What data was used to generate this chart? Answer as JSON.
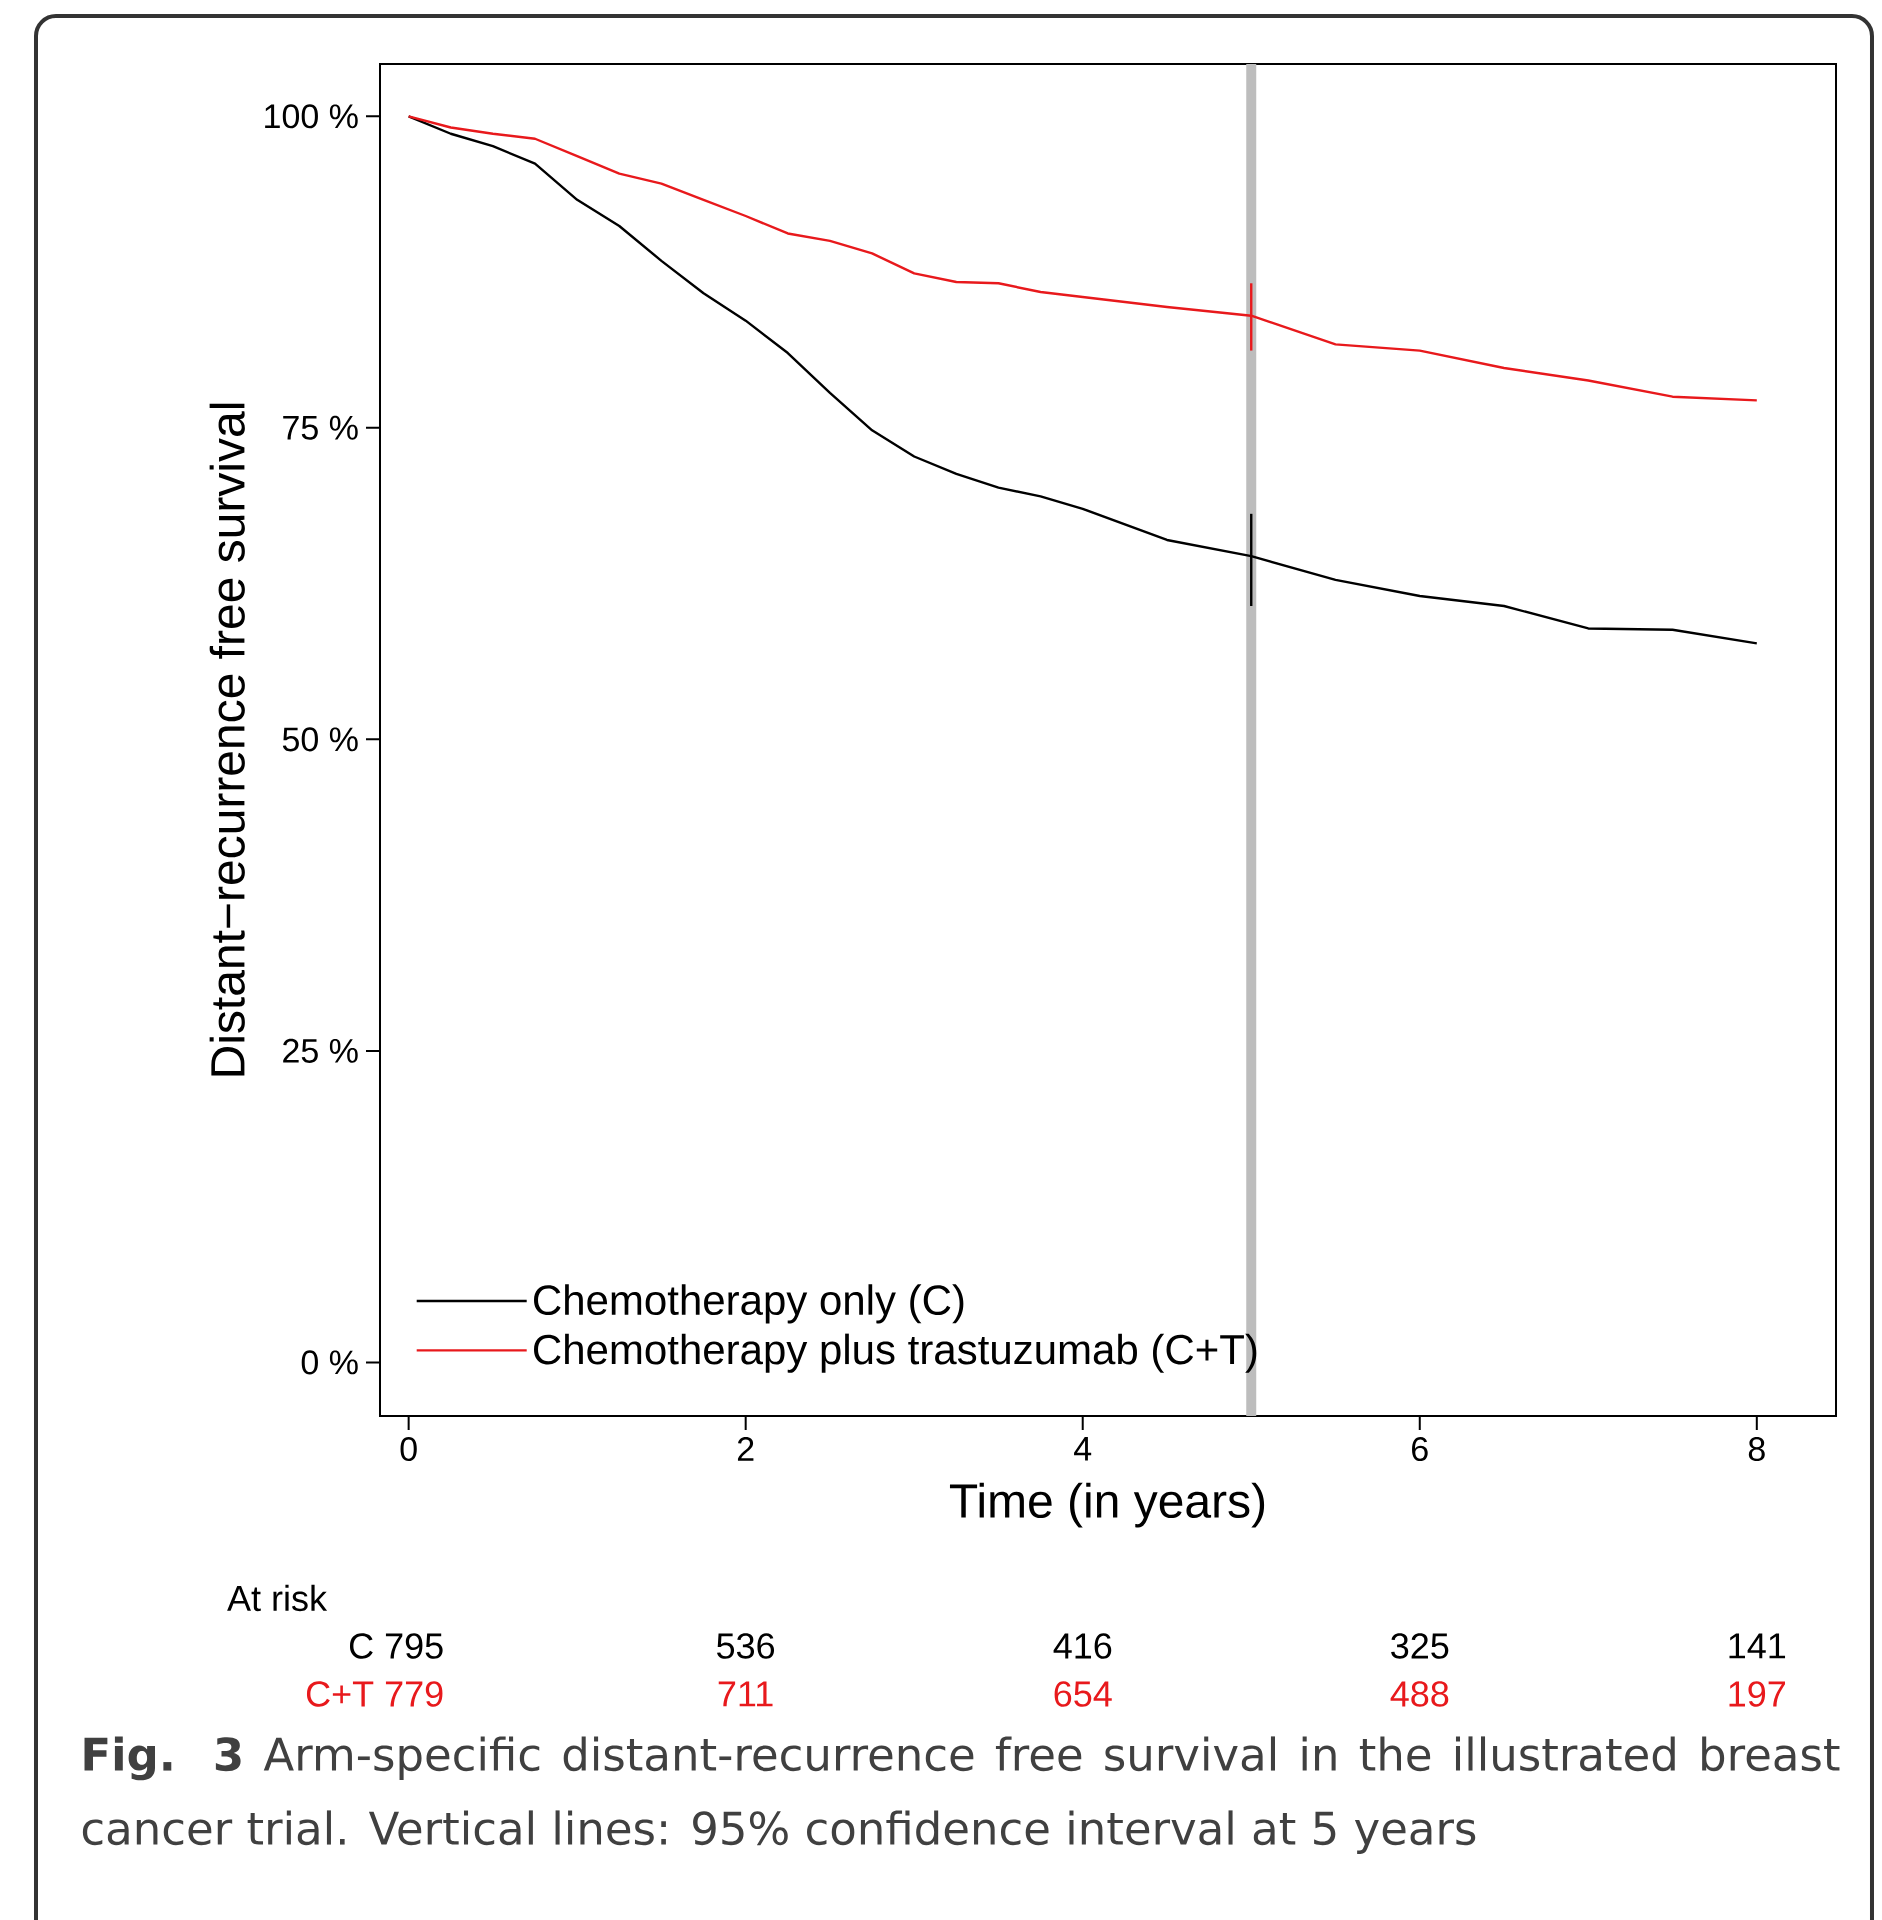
{
  "chart_data": {
    "type": "line",
    "xlabel": "Time (in years)",
    "ylabel": "Distant−recurrence free survival",
    "x": [
      0,
      0.25,
      0.5,
      0.75,
      1,
      1.25,
      1.5,
      1.75,
      2,
      2.25,
      2.5,
      2.75,
      3,
      3.25,
      3.5,
      3.75,
      4,
      4.5,
      5,
      5.5,
      6,
      6.5,
      7,
      7.5,
      8
    ],
    "series": [
      {
        "name": "Chemotherapy only (C)",
        "color": "#000000",
        "values": [
          100,
          98.6,
          97.6,
          96.2,
          93.3,
          91.2,
          88.4,
          85.8,
          83.6,
          81,
          77.8,
          74.8,
          72.7,
          71.3,
          70.2,
          69.5,
          68.5,
          66,
          64.7,
          62.8,
          61.5,
          60.7,
          58.9,
          58.8,
          57.7
        ],
        "errors": [
          null,
          null,
          null,
          null,
          null,
          null,
          null,
          null,
          null,
          null,
          null,
          null,
          null,
          null,
          null,
          null,
          null,
          null,
          [
            60.7,
            68.1
          ],
          null,
          null,
          null,
          null,
          null,
          null
        ]
      },
      {
        "name": "Chemotherapy plus trastuzumab (C+T)",
        "color": "#e8191c",
        "values": [
          100,
          99.1,
          98.6,
          98.2,
          96.8,
          95.4,
          94.6,
          93.3,
          92,
          90.6,
          90,
          89,
          87.4,
          86.7,
          86.6,
          85.9,
          85.5,
          84.7,
          84,
          81.7,
          81.2,
          79.8,
          78.8,
          77.5,
          77.2
        ],
        "errors": [
          null,
          null,
          null,
          null,
          null,
          null,
          null,
          null,
          null,
          null,
          null,
          null,
          null,
          null,
          null,
          null,
          null,
          null,
          [
            81.2,
            86.6
          ],
          null,
          null,
          null,
          null,
          null,
          null
        ]
      }
    ],
    "xlim": [
      -0.17,
      8.47
    ],
    "ylim": [
      -4.3,
      104.2
    ],
    "xticks": [
      0,
      2,
      4,
      6,
      8
    ],
    "yticks": [
      {
        "value": 0,
        "label": "0 %"
      },
      {
        "value": 25,
        "label": "25 %"
      },
      {
        "value": 50,
        "label": "50 %"
      },
      {
        "value": 75,
        "label": "75 %"
      },
      {
        "value": 100,
        "label": "100 %"
      }
    ],
    "ref_lines": [
      {
        "axis": "x",
        "value": 5,
        "color": "#bdbdbd"
      }
    ],
    "legend": "bottom left",
    "annotations": [
      "At risk",
      "C 795",
      "536",
      "416",
      "325",
      "141",
      "C+T 779",
      "711",
      "654",
      "488",
      "197",
      "**Fig. 3** Arm-specific distant-recurrence free survival in the illustrated breast cancer trial. Vertical lines: 95% confidence interval at 5 years"
    ]
  }
}
